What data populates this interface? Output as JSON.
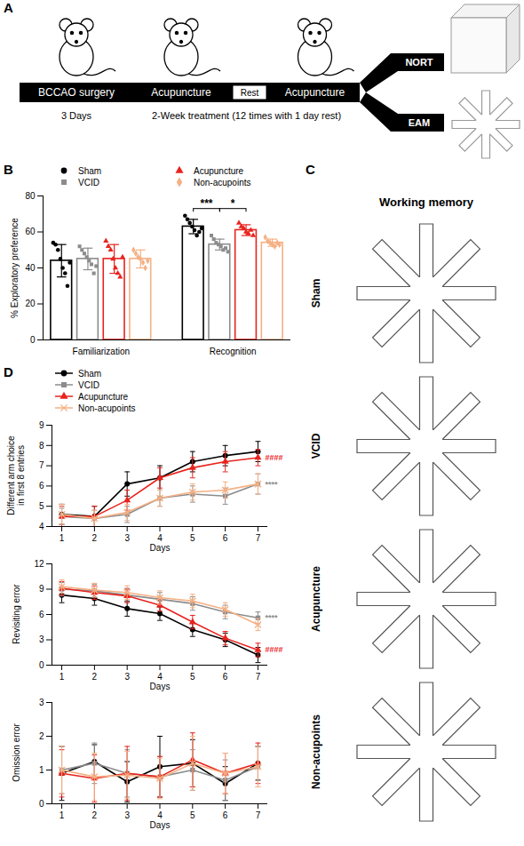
{
  "chart_data": [
    {
      "panel": "B",
      "type": "bar",
      "categories": [
        "Familiarization",
        "Recognition"
      ],
      "ylabel": "% Exploratory preference",
      "ylim": [
        0,
        80
      ],
      "yticks": [
        0,
        20,
        40,
        60,
        80
      ],
      "legend": "top",
      "series": [
        {
          "name": "Sham",
          "color": "#000000",
          "marker": "circle",
          "values": [
            44,
            63
          ],
          "errors": [
            9,
            4
          ],
          "points": [
            [
              54,
              53,
              50,
              45,
              40,
              37,
              30,
              43
            ],
            [
              69,
              67,
              65,
              63,
              61,
              58,
              60,
              62
            ]
          ]
        },
        {
          "name": "VCID",
          "color": "#8c8c8c",
          "marker": "square",
          "values": [
            45,
            53
          ],
          "errors": [
            6,
            3
          ],
          "points": [
            [
              52,
              50,
              48,
              46,
              44,
              42,
              37,
              41
            ],
            [
              58,
              56,
              54,
              53,
              52,
              50,
              51,
              49
            ]
          ]
        },
        {
          "name": "Acupuncture",
          "color": "#e8231e",
          "marker": "triangle",
          "values": [
            45,
            61
          ],
          "errors": [
            8,
            3
          ],
          "points": [
            [
              55,
              52,
              50,
              45,
              40,
              37,
              35,
              46
            ],
            [
              65,
              63,
              62,
              60,
              59,
              61,
              58
            ]
          ]
        },
        {
          "name": "Non-acupoints",
          "color": "#f5b084",
          "marker": "diamond",
          "values": [
            45,
            54
          ],
          "errors": [
            5,
            2
          ],
          "points": [
            [
              50,
              48,
              46,
              45,
              43,
              40,
              44
            ],
            [
              57,
              55,
              54,
              53,
              52,
              54,
              53
            ]
          ]
        }
      ],
      "annotations": [
        {
          "text": "***",
          "category": "Recognition",
          "from": "Sham",
          "to": "VCID"
        },
        {
          "text": "*",
          "category": "Recognition",
          "from": "VCID",
          "to": "Acupuncture"
        }
      ]
    },
    {
      "panel": "D",
      "type": "line",
      "x": [
        1,
        2,
        3,
        4,
        5,
        6,
        7
      ],
      "xlabel": "Days",
      "ylabel": "Different arm choice in first 8 entries",
      "xlim": [
        0.7,
        7.3
      ],
      "xticks": [
        1,
        2,
        3,
        4,
        5,
        6,
        7
      ],
      "ylim": [
        4,
        9
      ],
      "yticks": [
        4,
        5,
        6,
        7,
        8,
        9
      ],
      "legend": "top",
      "series": [
        {
          "name": "Sham",
          "color": "#000000",
          "marker": "circle",
          "values": [
            4.6,
            4.5,
            6.1,
            6.4,
            7.2,
            7.5,
            7.7
          ],
          "errors": [
            0.5,
            0.5,
            0.6,
            0.6,
            0.5,
            0.5,
            0.5
          ]
        },
        {
          "name": "VCID",
          "color": "#8c8c8c",
          "marker": "square",
          "values": [
            4.5,
            4.4,
            4.6,
            5.4,
            5.6,
            5.5,
            6.1
          ],
          "errors": [
            0.4,
            0.4,
            0.4,
            0.4,
            0.4,
            0.4,
            0.5
          ]
        },
        {
          "name": "Acupuncture",
          "color": "#e8231e",
          "marker": "triangle",
          "values": [
            4.5,
            4.5,
            5.3,
            6.4,
            6.9,
            7.2,
            7.4
          ],
          "errors": [
            0.5,
            0.5,
            0.5,
            0.5,
            0.5,
            0.5,
            0.4
          ]
        },
        {
          "name": "Non-acupoints",
          "color": "#f5b084",
          "marker": "x",
          "values": [
            4.6,
            4.4,
            4.7,
            5.4,
            5.7,
            5.8,
            6.1
          ],
          "errors": [
            0.5,
            0.4,
            0.4,
            0.4,
            0.4,
            0.4,
            0.5
          ]
        }
      ],
      "annotations": [
        {
          "text": "####",
          "series": "Acupuncture"
        },
        {
          "text": "****",
          "series": "VCID"
        }
      ]
    },
    {
      "type": "line",
      "x": [
        1,
        2,
        3,
        4,
        5,
        6,
        7
      ],
      "xlabel": "Days",
      "ylabel": "Revisiting error",
      "xlim": [
        0.7,
        7.3
      ],
      "xticks": [
        1,
        2,
        3,
        4,
        5,
        6,
        7
      ],
      "ylim": [
        0,
        12
      ],
      "yticks": [
        0,
        3,
        6,
        9,
        12
      ],
      "series": [
        {
          "name": "Sham",
          "color": "#000000",
          "marker": "circle",
          "values": [
            8.3,
            7.9,
            6.7,
            6.1,
            4.2,
            3.0,
            1.2
          ],
          "errors": [
            0.9,
            0.8,
            0.9,
            0.8,
            0.8,
            0.8,
            0.9
          ]
        },
        {
          "name": "VCID",
          "color": "#8c8c8c",
          "marker": "square",
          "values": [
            9.0,
            8.8,
            8.3,
            7.8,
            7.3,
            6.3,
            5.6
          ],
          "errors": [
            0.8,
            0.8,
            0.8,
            0.8,
            0.8,
            0.8,
            0.7
          ]
        },
        {
          "name": "Acupuncture",
          "color": "#e8231e",
          "marker": "triangle",
          "values": [
            9.1,
            8.6,
            8.2,
            7.1,
            5.1,
            3.2,
            1.8
          ],
          "errors": [
            0.8,
            0.8,
            0.8,
            0.7,
            0.8,
            0.8,
            0.8
          ]
        },
        {
          "name": "Non-acupoints",
          "color": "#f5b084",
          "marker": "x",
          "values": [
            9.3,
            8.9,
            8.6,
            8.0,
            7.6,
            6.6,
            4.8
          ],
          "errors": [
            0.8,
            0.8,
            0.8,
            0.8,
            0.8,
            0.8,
            0.7
          ]
        }
      ],
      "annotations": [
        {
          "text": "****",
          "series": "VCID"
        },
        {
          "text": "####",
          "series": "Acupuncture"
        }
      ]
    },
    {
      "type": "line",
      "x": [
        1,
        2,
        3,
        4,
        5,
        6,
        7
      ],
      "xlabel": "Days",
      "ylabel": "Omission error",
      "xlim": [
        0.7,
        7.3
      ],
      "xticks": [
        1,
        2,
        3,
        4,
        5,
        6,
        7
      ],
      "ylim": [
        0,
        3
      ],
      "yticks": [
        0,
        1,
        2,
        3
      ],
      "series": [
        {
          "name": "Sham",
          "color": "#000000",
          "marker": "circle",
          "values": [
            0.9,
            1.25,
            0.65,
            1.1,
            1.2,
            0.6,
            1.2
          ],
          "errors": [
            0.8,
            0.5,
            0.6,
            0.9,
            0.7,
            0.5,
            0.5
          ]
        },
        {
          "name": "VCID",
          "color": "#8c8c8c",
          "marker": "square",
          "values": [
            1.0,
            1.2,
            0.9,
            0.8,
            1.0,
            0.7,
            1.1
          ],
          "errors": [
            0.7,
            0.6,
            0.7,
            0.6,
            0.6,
            0.6,
            0.6
          ]
        },
        {
          "name": "Acupuncture",
          "color": "#e8231e",
          "marker": "triangle",
          "values": [
            0.9,
            0.75,
            0.9,
            0.8,
            1.3,
            0.9,
            1.2
          ],
          "errors": [
            0.7,
            0.7,
            0.8,
            0.6,
            0.8,
            0.6,
            0.6
          ]
        },
        {
          "name": "Non-acupoints",
          "color": "#f5b084",
          "marker": "x",
          "values": [
            1.0,
            0.8,
            0.85,
            0.75,
            1.2,
            0.9,
            1.1
          ],
          "errors": [
            0.7,
            0.7,
            0.7,
            0.6,
            0.8,
            0.6,
            0.6
          ]
        }
      ]
    }
  ],
  "diagram": {
    "panel": "A",
    "timeline": [
      "BCCAO surgery",
      "Acupuncture",
      "Rest",
      "Acupuncture"
    ],
    "durations": [
      "3 Days",
      "2-Week treatment (12 times with 1 day rest)"
    ],
    "tests": [
      "NORT",
      "EAM"
    ]
  },
  "maze_panel": {
    "panel": "C",
    "title": "Working memory",
    "groups": [
      "Sham",
      "VCID",
      "Acupuncture",
      "Non-acupoints"
    ]
  }
}
